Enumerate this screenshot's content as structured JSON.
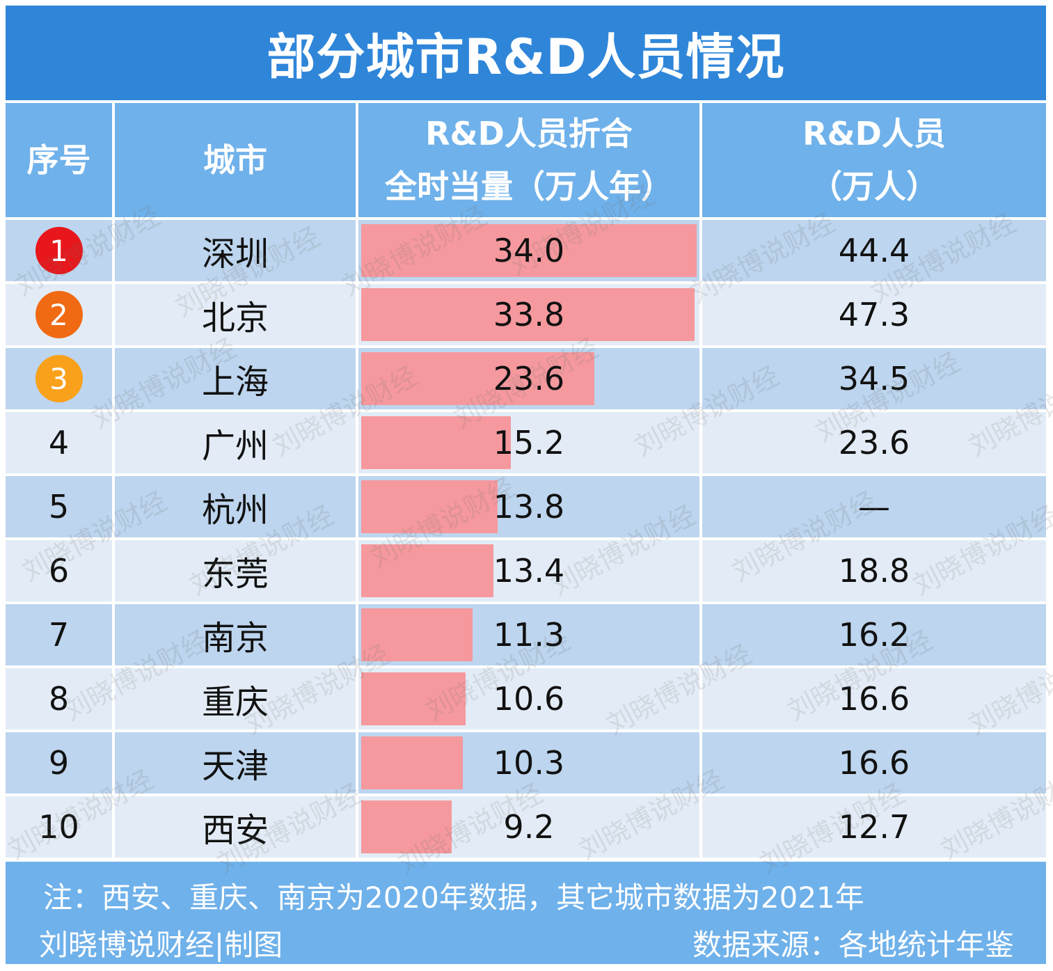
{
  "title": "部分城市R&D人员情况",
  "headers": {
    "rank": "序号",
    "city": "城市",
    "fte_line1": "R&D人员折合",
    "fte_line2": "全时当量（万人年）",
    "staff_line1": "R&D人员",
    "staff_line2": "（万人）"
  },
  "colors": {
    "title_bg": "#2f86d9",
    "header_bg": "#6fb1ea",
    "row_odd": "#bdd5ee",
    "row_even": "#e3ecf6",
    "bar": "#f5999e",
    "medal_1": "#e8171b",
    "medal_2": "#f06a14",
    "medal_3": "#f9a11b"
  },
  "chart_data": {
    "type": "bar",
    "xlim": [
      0,
      34.0
    ],
    "categories": [
      "深圳",
      "北京",
      "上海",
      "广州",
      "杭州",
      "东莞",
      "南京",
      "重庆",
      "天津",
      "西安"
    ],
    "series": [
      {
        "name": "R&D人员折合全时当量（万人年）",
        "values": [
          34.0,
          33.8,
          23.6,
          15.2,
          13.8,
          13.4,
          11.3,
          10.6,
          10.3,
          9.2
        ]
      }
    ]
  },
  "rows": [
    {
      "rank": "1",
      "city": "深圳",
      "fte": "34.0",
      "staff": "44.4"
    },
    {
      "rank": "2",
      "city": "北京",
      "fte": "33.8",
      "staff": "47.3"
    },
    {
      "rank": "3",
      "city": "上海",
      "fte": "23.6",
      "staff": "34.5"
    },
    {
      "rank": "4",
      "city": "广州",
      "fte": "15.2",
      "staff": "23.6"
    },
    {
      "rank": "5",
      "city": "杭州",
      "fte": "13.8",
      "staff": "—"
    },
    {
      "rank": "6",
      "city": "东莞",
      "fte": "13.4",
      "staff": "18.8"
    },
    {
      "rank": "7",
      "city": "南京",
      "fte": "11.3",
      "staff": "16.2"
    },
    {
      "rank": "8",
      "city": "重庆",
      "fte": "10.6",
      "staff": "16.6"
    },
    {
      "rank": "9",
      "city": "天津",
      "fte": "10.3",
      "staff": "16.6"
    },
    {
      "rank": "10",
      "city": "西安",
      "fte": "9.2",
      "staff": "12.7"
    }
  ],
  "footer": {
    "note": "注：西安、重庆、南京为2020年数据，其它城市数据为2021年",
    "credit": "刘晓博说财经|制图",
    "source": "数据来源：各地统计年鉴"
  },
  "watermark": "刘晓博说财经"
}
